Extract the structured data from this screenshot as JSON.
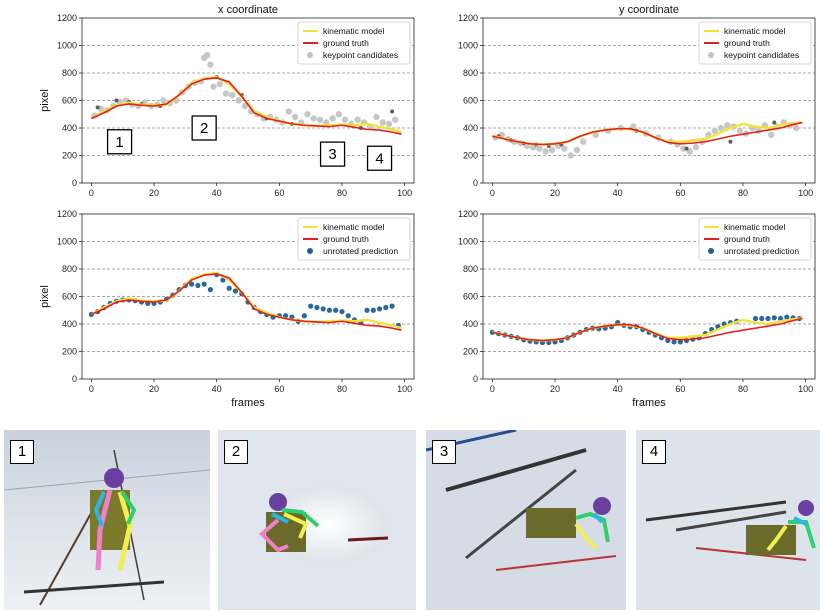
{
  "chart_data": [
    {
      "type": "line",
      "title": "x coordinate",
      "xlabel": "",
      "ylabel": "pixel",
      "xlim": [
        -3,
        103
      ],
      "ylim": [
        0,
        1200
      ],
      "xticks": [
        0,
        20,
        40,
        60,
        80,
        100
      ],
      "yticks": [
        0,
        200,
        400,
        600,
        800,
        1000,
        1200
      ],
      "grid": "y-dashed",
      "legend": "top-right",
      "series": [
        {
          "name": "kinematic model",
          "kind": "line",
          "color": "#f2e33a",
          "x": [
            0,
            4,
            8,
            12,
            16,
            20,
            24,
            28,
            32,
            36,
            40,
            44,
            48,
            52,
            56,
            60,
            64,
            68,
            72,
            76,
            80,
            84,
            88,
            92,
            96,
            99
          ],
          "y": [
            470,
            520,
            565,
            585,
            570,
            565,
            570,
            640,
            730,
            760,
            770,
            720,
            630,
            520,
            480,
            450,
            430,
            420,
            415,
            420,
            425,
            420,
            430,
            410,
            390,
            370
          ]
        },
        {
          "name": "ground truth",
          "kind": "line",
          "color": "#e32020",
          "x": [
            0,
            4,
            8,
            12,
            16,
            20,
            24,
            28,
            32,
            36,
            40,
            44,
            48,
            52,
            56,
            60,
            64,
            68,
            72,
            76,
            80,
            84,
            88,
            92,
            96,
            99
          ],
          "y": [
            470,
            510,
            560,
            575,
            565,
            560,
            575,
            640,
            720,
            755,
            765,
            735,
            630,
            510,
            470,
            450,
            430,
            420,
            415,
            410,
            420,
            405,
            390,
            385,
            370,
            355
          ]
        },
        {
          "name": "keypoint candidates",
          "kind": "scatter",
          "color": "#c4c4c4",
          "x": [
            1,
            3,
            5,
            7,
            9,
            11,
            13,
            15,
            17,
            19,
            21,
            23,
            25,
            27,
            29,
            31,
            33,
            35,
            36,
            37,
            38,
            39,
            41,
            43,
            45,
            47,
            49,
            51,
            53,
            55,
            57,
            59,
            61,
            63,
            65,
            67,
            69,
            71,
            73,
            75,
            77,
            79,
            81,
            83,
            85,
            87,
            89,
            91,
            93,
            95,
            97
          ],
          "y": [
            490,
            540,
            530,
            560,
            590,
            600,
            570,
            560,
            585,
            560,
            570,
            600,
            580,
            600,
            660,
            700,
            730,
            740,
            910,
            930,
            860,
            700,
            720,
            650,
            640,
            600,
            560,
            520,
            500,
            470,
            480,
            460,
            440,
            520,
            480,
            440,
            500,
            470,
            460,
            440,
            470,
            500,
            460,
            430,
            460,
            440,
            410,
            480,
            440,
            430,
            460
          ]
        },
        {
          "name": "",
          "kind": "scatter",
          "color": "#555555",
          "x": [
            2,
            8,
            12,
            16,
            22,
            40,
            48,
            56,
            64,
            86,
            96
          ],
          "y": [
            550,
            600,
            590,
            575,
            560,
            770,
            640,
            470,
            430,
            400,
            520
          ]
        }
      ]
    },
    {
      "type": "line",
      "title": "y coordinate",
      "xlabel": "",
      "ylabel": "",
      "xlim": [
        -3,
        103
      ],
      "ylim": [
        0,
        1200
      ],
      "xticks": [
        0,
        20,
        40,
        60,
        80,
        100
      ],
      "yticks": [
        0,
        200,
        400,
        600,
        800,
        1000,
        1200
      ],
      "grid": "y-dashed",
      "legend": "top-right",
      "series": [
        {
          "name": "kinematic model",
          "kind": "line",
          "color": "#f2e33a",
          "x": [
            0,
            4,
            8,
            12,
            16,
            20,
            24,
            28,
            32,
            36,
            40,
            44,
            48,
            52,
            56,
            60,
            64,
            68,
            72,
            76,
            80,
            84,
            88,
            92,
            96,
            99
          ],
          "y": [
            345,
            320,
            300,
            285,
            280,
            285,
            300,
            340,
            370,
            385,
            395,
            390,
            370,
            330,
            300,
            300,
            310,
            320,
            360,
            400,
            430,
            410,
            400,
            420,
            435,
            440
          ]
        },
        {
          "name": "ground truth",
          "kind": "line",
          "color": "#e32020",
          "x": [
            0,
            4,
            8,
            12,
            16,
            20,
            24,
            28,
            32,
            36,
            40,
            44,
            48,
            52,
            56,
            60,
            64,
            68,
            72,
            76,
            80,
            84,
            88,
            92,
            96,
            99
          ],
          "y": [
            340,
            320,
            300,
            285,
            280,
            285,
            300,
            340,
            370,
            385,
            395,
            395,
            370,
            330,
            295,
            285,
            290,
            300,
            320,
            340,
            355,
            370,
            385,
            400,
            425,
            440
          ]
        },
        {
          "name": "keypoint candidates",
          "kind": "scatter",
          "color": "#c4c4c4",
          "x": [
            1,
            3,
            5,
            7,
            9,
            11,
            13,
            15,
            17,
            19,
            21,
            23,
            25,
            27,
            29,
            33,
            37,
            41,
            45,
            49,
            53,
            57,
            59,
            61,
            63,
            65,
            67,
            69,
            71,
            73,
            75,
            77,
            79,
            81,
            83,
            85,
            87,
            89,
            91,
            93,
            95,
            97
          ],
          "y": [
            330,
            350,
            320,
            300,
            290,
            270,
            260,
            250,
            230,
            240,
            270,
            250,
            200,
            240,
            300,
            350,
            380,
            400,
            410,
            360,
            330,
            300,
            280,
            250,
            230,
            260,
            300,
            350,
            380,
            400,
            420,
            410,
            380,
            360,
            400,
            380,
            420,
            350,
            410,
            440,
            420,
            400
          ]
        },
        {
          "name": "",
          "kind": "scatter",
          "color": "#555555",
          "x": [
            2,
            6,
            10,
            14,
            18,
            22,
            46,
            62,
            76,
            90
          ],
          "y": [
            340,
            310,
            290,
            280,
            270,
            280,
            380,
            250,
            300,
            440
          ]
        }
      ]
    },
    {
      "type": "line",
      "title": "",
      "xlabel": "frames",
      "ylabel": "pixel",
      "xlim": [
        -3,
        103
      ],
      "ylim": [
        0,
        1200
      ],
      "xticks": [
        0,
        20,
        40,
        60,
        80,
        100
      ],
      "yticks": [
        0,
        200,
        400,
        600,
        800,
        1000,
        1200
      ],
      "grid": "y-dashed",
      "legend": "top-right",
      "series": [
        {
          "name": "kinematic model",
          "kind": "line",
          "color": "#f2e33a",
          "x": [
            0,
            4,
            8,
            12,
            16,
            20,
            24,
            28,
            32,
            36,
            40,
            44,
            48,
            52,
            56,
            60,
            64,
            68,
            72,
            76,
            80,
            84,
            88,
            92,
            96,
            99
          ],
          "y": [
            470,
            520,
            565,
            585,
            570,
            565,
            570,
            640,
            730,
            760,
            770,
            720,
            630,
            520,
            480,
            450,
            430,
            420,
            415,
            420,
            425,
            420,
            430,
            410,
            390,
            370
          ]
        },
        {
          "name": "ground truth",
          "kind": "line",
          "color": "#e32020",
          "x": [
            0,
            4,
            8,
            12,
            16,
            20,
            24,
            28,
            32,
            36,
            40,
            44,
            48,
            52,
            56,
            60,
            64,
            68,
            72,
            76,
            80,
            84,
            88,
            92,
            96,
            99
          ],
          "y": [
            470,
            510,
            560,
            575,
            565,
            560,
            575,
            640,
            720,
            755,
            765,
            735,
            630,
            510,
            470,
            450,
            430,
            420,
            415,
            410,
            420,
            405,
            390,
            385,
            370,
            355
          ]
        },
        {
          "name": "unrotated prediction",
          "kind": "scatter",
          "color": "#1f5f96",
          "x": [
            0,
            2,
            4,
            6,
            8,
            10,
            12,
            14,
            16,
            18,
            20,
            22,
            24,
            26,
            28,
            30,
            32,
            34,
            36,
            38,
            40,
            42,
            44,
            46,
            48,
            50,
            52,
            54,
            56,
            58,
            60,
            62,
            64,
            66,
            68,
            70,
            72,
            74,
            76,
            78,
            80,
            82,
            84,
            86,
            88,
            90,
            92,
            94,
            96,
            98
          ],
          "y": [
            470,
            490,
            520,
            550,
            565,
            575,
            575,
            570,
            560,
            550,
            550,
            560,
            580,
            610,
            650,
            680,
            690,
            680,
            690,
            650,
            760,
            720,
            660,
            640,
            620,
            560,
            520,
            490,
            470,
            450,
            460,
            460,
            450,
            420,
            460,
            530,
            520,
            510,
            500,
            500,
            490,
            460,
            430,
            410,
            500,
            500,
            510,
            520,
            530,
            390
          ]
        }
      ]
    },
    {
      "type": "line",
      "title": "",
      "xlabel": "frames",
      "ylabel": "",
      "xlim": [
        -3,
        103
      ],
      "ylim": [
        0,
        1200
      ],
      "xticks": [
        0,
        20,
        40,
        60,
        80,
        100
      ],
      "yticks": [
        0,
        200,
        400,
        600,
        800,
        1000,
        1200
      ],
      "grid": "y-dashed",
      "legend": "top-right",
      "series": [
        {
          "name": "kinematic model",
          "kind": "line",
          "color": "#f2e33a",
          "x": [
            0,
            4,
            8,
            12,
            16,
            20,
            24,
            28,
            32,
            36,
            40,
            44,
            48,
            52,
            56,
            60,
            64,
            68,
            72,
            76,
            80,
            84,
            88,
            92,
            96,
            99
          ],
          "y": [
            345,
            320,
            300,
            285,
            280,
            285,
            300,
            340,
            370,
            385,
            395,
            390,
            370,
            330,
            300,
            300,
            310,
            320,
            360,
            400,
            430,
            410,
            400,
            420,
            435,
            440
          ]
        },
        {
          "name": "ground truth",
          "kind": "line",
          "color": "#e32020",
          "x": [
            0,
            4,
            8,
            12,
            16,
            20,
            24,
            28,
            32,
            36,
            40,
            44,
            48,
            52,
            56,
            60,
            64,
            68,
            72,
            76,
            80,
            84,
            88,
            92,
            96,
            99
          ],
          "y": [
            340,
            320,
            300,
            285,
            280,
            285,
            300,
            340,
            370,
            385,
            395,
            395,
            370,
            330,
            295,
            285,
            290,
            300,
            320,
            340,
            355,
            370,
            385,
            400,
            425,
            440
          ]
        },
        {
          "name": "unrotated prediction",
          "kind": "scatter",
          "color": "#1f5f96",
          "x": [
            0,
            2,
            4,
            6,
            8,
            10,
            12,
            14,
            16,
            18,
            20,
            22,
            24,
            26,
            28,
            30,
            32,
            34,
            36,
            38,
            40,
            42,
            44,
            46,
            48,
            50,
            52,
            54,
            56,
            58,
            60,
            62,
            64,
            66,
            68,
            70,
            72,
            74,
            76,
            78,
            84,
            86,
            88,
            90,
            92,
            94,
            96,
            98
          ],
          "y": [
            340,
            330,
            320,
            310,
            300,
            285,
            275,
            270,
            265,
            265,
            270,
            280,
            300,
            320,
            340,
            360,
            370,
            365,
            370,
            380,
            410,
            390,
            380,
            380,
            360,
            340,
            320,
            300,
            280,
            270,
            270,
            280,
            290,
            300,
            330,
            360,
            380,
            400,
            410,
            420,
            440,
            440,
            440,
            445,
            440,
            450,
            445,
            440
          ]
        }
      ]
    }
  ],
  "annotations": [
    "1",
    "2",
    "3",
    "4"
  ],
  "photos": [
    {
      "label": "1"
    },
    {
      "label": "2"
    },
    {
      "label": "3"
    },
    {
      "label": "4"
    }
  ]
}
